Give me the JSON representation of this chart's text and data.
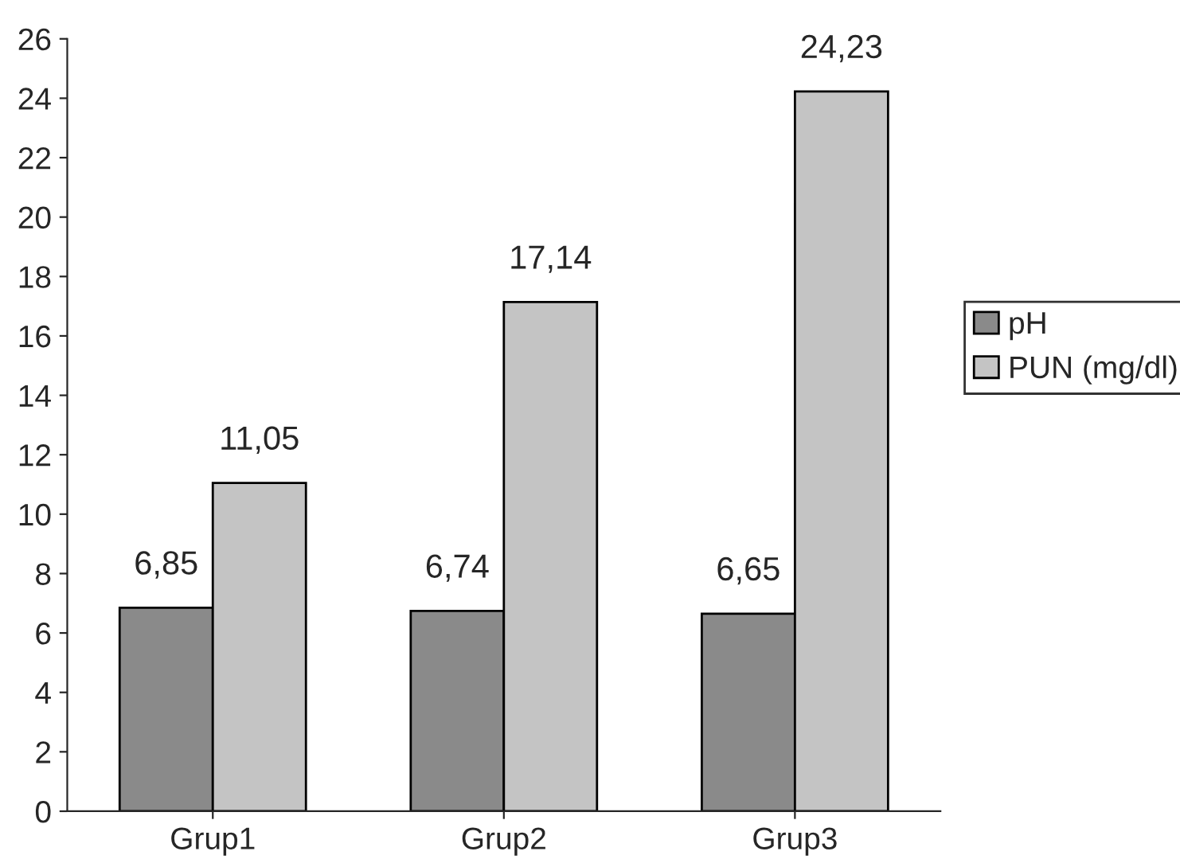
{
  "chart_data": {
    "type": "bar",
    "categories": [
      "Grup1",
      "Grup2",
      "Grup3"
    ],
    "series": [
      {
        "name": "pH",
        "color": "#8a8a8a",
        "values": [
          6.85,
          6.74,
          6.65
        ],
        "value_labels": [
          "6,85",
          "6,74",
          "6,65"
        ]
      },
      {
        "name": "PUN (mg/dl)",
        "color": "#c4c4c4",
        "values": [
          11.05,
          17.14,
          24.23
        ],
        "value_labels": [
          "11,05",
          "17,14",
          "24,23"
        ]
      }
    ],
    "ylim": [
      0,
      26
    ],
    "yticks": [
      0,
      2,
      4,
      6,
      8,
      10,
      12,
      14,
      16,
      18,
      20,
      22,
      24,
      26
    ],
    "grid": false,
    "legend": "right"
  }
}
